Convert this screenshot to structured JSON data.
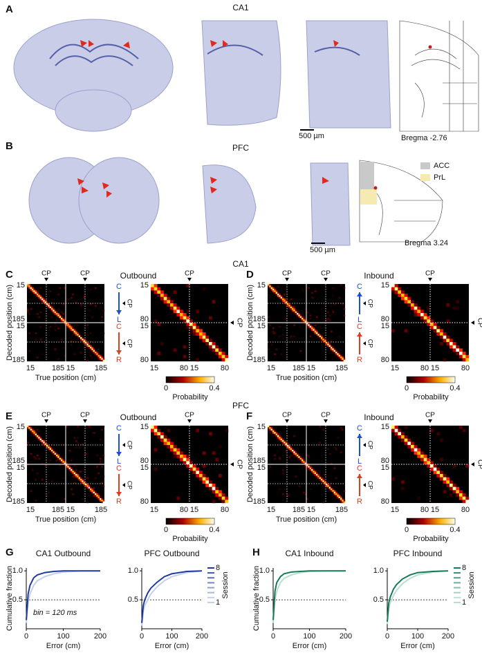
{
  "histology": [
    {
      "label": "A",
      "title": "CA1",
      "scale_bar": "500 µm",
      "bregma": "Bregma -2.76"
    },
    {
      "label": "B",
      "title": "PFC",
      "scale_bar": "500 µm",
      "bregma": "Bregma 3.24",
      "legend": [
        "ACC",
        "PrL"
      ]
    }
  ],
  "decoding": [
    {
      "title": "CA1",
      "panels": [
        {
          "label": "C",
          "title": "Outbound",
          "cp": "CP",
          "ylabel": "Decoded position (cm)",
          "xlabel": "True position (cm)",
          "left_yticks": [
            15,
            185,
            15,
            185
          ],
          "left_xticks": [
            15,
            185,
            15,
            185
          ],
          "right_yticks": [
            15,
            80,
            15,
            80
          ],
          "right_xticks": [
            15,
            80,
            15,
            80
          ],
          "arrow_top": [
            "C",
            "L"
          ],
          "arrow_bottom": [
            "C",
            "R"
          ],
          "colorbar_ticks": [
            0,
            0.4
          ],
          "colorbar_label": "Probability"
        },
        {
          "label": "D",
          "title": "Inbound",
          "cp": "CP",
          "ylabel": "Decoded position (cm)",
          "xlabel": "True position (cm)",
          "left_yticks": [
            15,
            185,
            15,
            185
          ],
          "left_xticks": [
            15,
            185,
            15,
            185
          ],
          "right_yticks": [
            15,
            80,
            15,
            80
          ],
          "right_xticks": [
            15,
            80,
            15,
            80
          ],
          "arrow_top": [
            "C",
            "L"
          ],
          "arrow_bottom": [
            "C",
            "R"
          ],
          "colorbar_ticks": [
            0,
            0.4
          ],
          "colorbar_label": "Probability"
        }
      ]
    },
    {
      "title": "PFC",
      "panels": [
        {
          "label": "E",
          "title": "Outbound",
          "cp": "CP",
          "ylabel": "Decoded position (cm)",
          "xlabel": "True position (cm)",
          "left_yticks": [
            15,
            185,
            15,
            185
          ],
          "left_xticks": [
            15,
            185,
            15,
            185
          ],
          "right_yticks": [
            15,
            80,
            15,
            80
          ],
          "right_xticks": [
            15,
            80,
            15,
            80
          ],
          "arrow_top": [
            "C",
            "L"
          ],
          "arrow_bottom": [
            "C",
            "R"
          ],
          "colorbar_ticks": [
            0,
            0.4
          ],
          "colorbar_label": "Probability"
        },
        {
          "label": "F",
          "title": "Inbound",
          "cp": "CP",
          "ylabel": "Decoded position (cm)",
          "xlabel": "True position (cm)",
          "left_yticks": [
            15,
            185,
            15,
            185
          ],
          "left_xticks": [
            15,
            185,
            15,
            185
          ],
          "right_yticks": [
            15,
            80,
            15,
            80
          ],
          "right_xticks": [
            15,
            80,
            15,
            80
          ],
          "arrow_top": [
            "C",
            "L"
          ],
          "arrow_bottom": [
            "C",
            "R"
          ],
          "colorbar_ticks": [
            0,
            0.4
          ],
          "colorbar_label": "Probability"
        }
      ]
    }
  ],
  "chart_data": [
    {
      "type": "line",
      "panel_label": "G",
      "title": "CA1 Outbound",
      "ylabel": "Cumulative fraction",
      "xlabel": "Error (cm)",
      "annotation": "bin = 120 ms",
      "x": [
        0,
        5,
        10,
        20,
        30,
        50,
        75,
        100,
        150,
        200
      ],
      "series": [
        {
          "color": "#c3cfee",
          "values": [
            0.1,
            0.45,
            0.6,
            0.75,
            0.83,
            0.9,
            0.95,
            0.98,
            1,
            1
          ]
        },
        {
          "color": "#1f3a9e",
          "values": [
            0.15,
            0.6,
            0.75,
            0.88,
            0.93,
            0.97,
            0.99,
            1,
            1,
            1
          ]
        }
      ],
      "xlim": [
        0,
        200
      ],
      "xticks": [
        0,
        100,
        200
      ],
      "ylim": [
        0,
        1.05
      ],
      "yticks": [
        0.5,
        {
          "value": 1,
          "label": "1.0"
        }
      ],
      "hline": 0.5
    },
    {
      "type": "line",
      "title": "PFC Outbound",
      "xlabel": "Error (cm)",
      "legend_title": "Session",
      "x": [
        0,
        5,
        10,
        20,
        30,
        50,
        75,
        100,
        150,
        200
      ],
      "series": [
        {
          "name": "1",
          "color": "#c3cfee",
          "values": [
            0.05,
            0.3,
            0.4,
            0.5,
            0.6,
            0.72,
            0.83,
            0.9,
            0.97,
            1
          ]
        },
        {
          "name": "8",
          "color": "#1f3a9e",
          "values": [
            0.1,
            0.4,
            0.5,
            0.62,
            0.7,
            0.8,
            0.9,
            0.95,
            0.99,
            1
          ]
        }
      ],
      "xlim": [
        0,
        200
      ],
      "xticks": [
        0,
        100,
        200
      ],
      "ylim": [
        0,
        1.05
      ],
      "yticks": [
        0.5,
        {
          "value": 1,
          "label": "1.0"
        }
      ],
      "hline": 0.5
    },
    {
      "type": "line",
      "panel_label": "H",
      "title": "CA1 Inbound",
      "ylabel": "Cumulative fraction",
      "xlabel": "Error (cm)",
      "x": [
        0,
        5,
        10,
        20,
        30,
        50,
        75,
        100,
        150,
        200
      ],
      "series": [
        {
          "color": "#b6e0cc",
          "values": [
            0.1,
            0.5,
            0.65,
            0.8,
            0.87,
            0.93,
            0.97,
            0.99,
            1,
            1
          ]
        },
        {
          "color": "#17795a",
          "values": [
            0.15,
            0.65,
            0.8,
            0.9,
            0.95,
            0.98,
            0.99,
            1,
            1,
            1
          ]
        }
      ],
      "xlim": [
        0,
        200
      ],
      "xticks": [
        0,
        100,
        200
      ],
      "ylim": [
        0,
        1.05
      ],
      "yticks": [
        0.5,
        {
          "value": 1,
          "label": "1.0"
        }
      ],
      "hline": 0.5
    },
    {
      "type": "line",
      "title": "PFC Inbound",
      "xlabel": "Error (cm)",
      "legend_title": "Session",
      "x": [
        0,
        5,
        10,
        20,
        30,
        50,
        75,
        100,
        150,
        200
      ],
      "series": [
        {
          "name": "1",
          "color": "#b6e0cc",
          "values": [
            0.08,
            0.35,
            0.45,
            0.57,
            0.66,
            0.78,
            0.87,
            0.93,
            0.98,
            1
          ]
        },
        {
          "name": "8",
          "color": "#17795a",
          "values": [
            0.12,
            0.45,
            0.55,
            0.68,
            0.76,
            0.86,
            0.93,
            0.97,
            0.99,
            1
          ]
        }
      ],
      "xlim": [
        0,
        200
      ],
      "xticks": [
        0,
        100,
        200
      ],
      "ylim": [
        0,
        1.05
      ],
      "yticks": [
        0.5,
        {
          "value": 1,
          "label": "1.0"
        }
      ],
      "hline": 0.5
    }
  ]
}
